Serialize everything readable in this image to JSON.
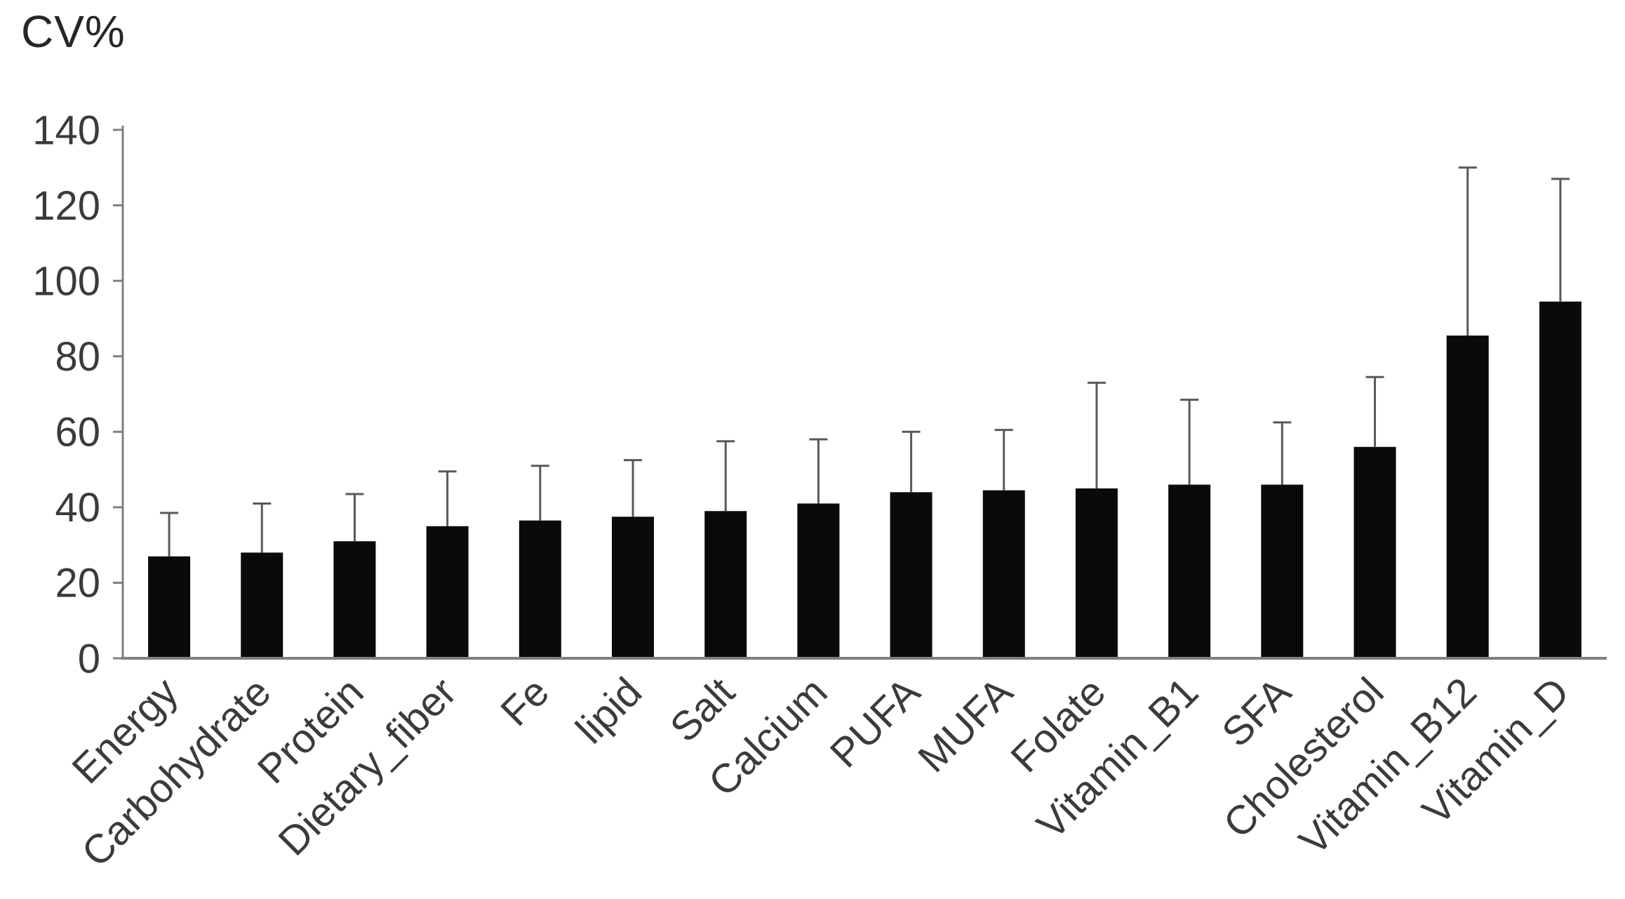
{
  "chart_data": {
    "type": "bar",
    "title": "CV%",
    "categories": [
      "Energy",
      "Carbohydrate",
      "Protein",
      "Dietary_fiber",
      "Fe",
      "lipid",
      "Salt",
      "Calcium",
      "PUFA",
      "MUFA",
      "Folate",
      "Vitamin_B1",
      "SFA",
      "Cholesterol",
      "Vitamin_B12",
      "Vitamin_D"
    ],
    "values": [
      27,
      28,
      31,
      35,
      36.5,
      37.5,
      39,
      41,
      44,
      44.5,
      45,
      46,
      46,
      56,
      85.5,
      94.5
    ],
    "error_upper": [
      11.5,
      13,
      12.5,
      14.5,
      14.5,
      15,
      18.5,
      17,
      16,
      16,
      28,
      22.5,
      16.5,
      18.5,
      44.5,
      32.5
    ],
    "ylim": [
      0,
      140
    ],
    "ytick_step": 20,
    "yticks": [
      0,
      20,
      40,
      60,
      80,
      100,
      120,
      140
    ],
    "xlabel": "",
    "ylabel": "CV%",
    "grid": false,
    "legend": false,
    "bar_color": "#0a0a0a",
    "error_color": "#595959",
    "axis_color": "#808080",
    "text_color": "#3b3b3b"
  }
}
